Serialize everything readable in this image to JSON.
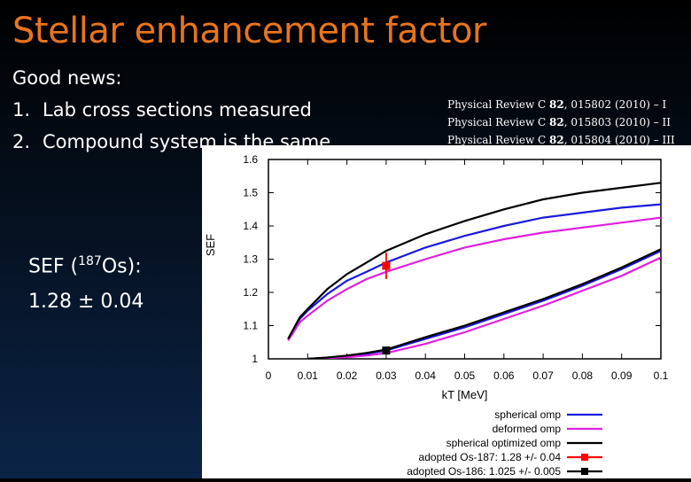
{
  "slide": {
    "title": "Stellar enhancement factor",
    "good_news": "Good news:",
    "items": [
      {
        "num": "1.",
        "text": "Lab cross sections measured"
      },
      {
        "num": "2.",
        "text": "Compound system is the same"
      }
    ],
    "sef_label_prefix": "SEF (",
    "sef_label_mass": "187",
    "sef_label_suffix": "Os):",
    "sef_value": "1.28 ± 0.04",
    "references": [
      {
        "pre": "Physical Review C ",
        "vol": "82",
        "post": ", 015802 (2010) – I"
      },
      {
        "pre": "Physical Review C ",
        "vol": "82",
        "post": ", 015803 (2010) – II"
      },
      {
        "pre": "Physical Review C ",
        "vol": "82",
        "post": ", 015804 (2010) – III"
      }
    ]
  },
  "chart_data": {
    "type": "line",
    "xlabel": "kT [MeV]",
    "ylabel": "SEF",
    "xlim": [
      0,
      0.1
    ],
    "ylim": [
      1,
      1.6
    ],
    "xticks": [
      "0",
      "0.01",
      "0.02",
      "0.03",
      "0.04",
      "0.05",
      "0.06",
      "0.07",
      "0.08",
      "0.09",
      "0.1"
    ],
    "yticks": [
      "1",
      "1.1",
      "1.2",
      "1.3",
      "1.4",
      "1.5",
      "1.6"
    ],
    "series": [
      {
        "group": "Os-187",
        "name": "spherical omp",
        "color": "#1a1adc",
        "x": [
          0.005,
          0.008,
          0.01,
          0.015,
          0.02,
          0.025,
          0.03,
          0.04,
          0.05,
          0.06,
          0.07,
          0.08,
          0.09,
          0.1
        ],
        "y": [
          1.06,
          1.12,
          1.145,
          1.195,
          1.235,
          1.262,
          1.29,
          1.335,
          1.37,
          1.4,
          1.425,
          1.44,
          1.455,
          1.465
        ]
      },
      {
        "group": "Os-187",
        "name": "deformed omp",
        "color": "#e020e0",
        "x": [
          0.005,
          0.008,
          0.01,
          0.015,
          0.02,
          0.025,
          0.03,
          0.04,
          0.05,
          0.06,
          0.07,
          0.08,
          0.09,
          0.1
        ],
        "y": [
          1.055,
          1.11,
          1.13,
          1.175,
          1.21,
          1.24,
          1.262,
          1.3,
          1.335,
          1.36,
          1.38,
          1.395,
          1.41,
          1.425
        ]
      },
      {
        "group": "Os-187",
        "name": "spherical optimized omp",
        "color": "#000000",
        "x": [
          0.005,
          0.008,
          0.01,
          0.015,
          0.02,
          0.025,
          0.03,
          0.04,
          0.05,
          0.06,
          0.07,
          0.08,
          0.09,
          0.1
        ],
        "y": [
          1.06,
          1.125,
          1.15,
          1.21,
          1.255,
          1.29,
          1.325,
          1.375,
          1.415,
          1.45,
          1.48,
          1.5,
          1.515,
          1.53
        ]
      },
      {
        "group": "Os-186",
        "name": "spherical omp",
        "color": "#1a1adc",
        "x": [
          0.01,
          0.015,
          0.02,
          0.025,
          0.03,
          0.04,
          0.05,
          0.06,
          0.07,
          0.08,
          0.09,
          0.1
        ],
        "y": [
          1.0,
          1.003,
          1.008,
          1.015,
          1.025,
          1.06,
          1.095,
          1.135,
          1.175,
          1.22,
          1.27,
          1.325
        ]
      },
      {
        "group": "Os-186",
        "name": "deformed omp",
        "color": "#e020e0",
        "x": [
          0.01,
          0.015,
          0.02,
          0.025,
          0.03,
          0.04,
          0.05,
          0.06,
          0.07,
          0.08,
          0.09,
          0.1
        ],
        "y": [
          1.0,
          1.002,
          1.005,
          1.01,
          1.017,
          1.045,
          1.08,
          1.12,
          1.16,
          1.205,
          1.25,
          1.305
        ]
      },
      {
        "group": "Os-186",
        "name": "spherical optimized omp",
        "color": "#000000",
        "x": [
          0.01,
          0.015,
          0.02,
          0.025,
          0.03,
          0.04,
          0.05,
          0.06,
          0.07,
          0.08,
          0.09,
          0.1
        ],
        "y": [
          1.0,
          1.004,
          1.01,
          1.018,
          1.028,
          1.065,
          1.1,
          1.14,
          1.18,
          1.225,
          1.275,
          1.33
        ]
      }
    ],
    "points": [
      {
        "name": "adopted Os-187: 1.28 +/- 0.04",
        "x": 0.03,
        "y": 1.28,
        "err": 0.04,
        "color": "#ff0000"
      },
      {
        "name": "adopted Os-186: 1.025 +/- 0.005",
        "x": 0.03,
        "y": 1.025,
        "err": 0.005,
        "color": "#000000"
      }
    ],
    "legend": [
      {
        "label": "spherical omp",
        "color": "#1a1adc",
        "marker": false
      },
      {
        "label": "deformed omp",
        "color": "#e020e0",
        "marker": false
      },
      {
        "label": "spherical optimized omp",
        "color": "#000000",
        "marker": false
      },
      {
        "label": "adopted Os-187: 1.28 +/- 0.04",
        "color": "#ff0000",
        "marker": true
      },
      {
        "label": "adopted Os-186: 1.025 +/- 0.005",
        "color": "#000000",
        "marker": true
      }
    ],
    "legend_position": "bottom-right"
  }
}
